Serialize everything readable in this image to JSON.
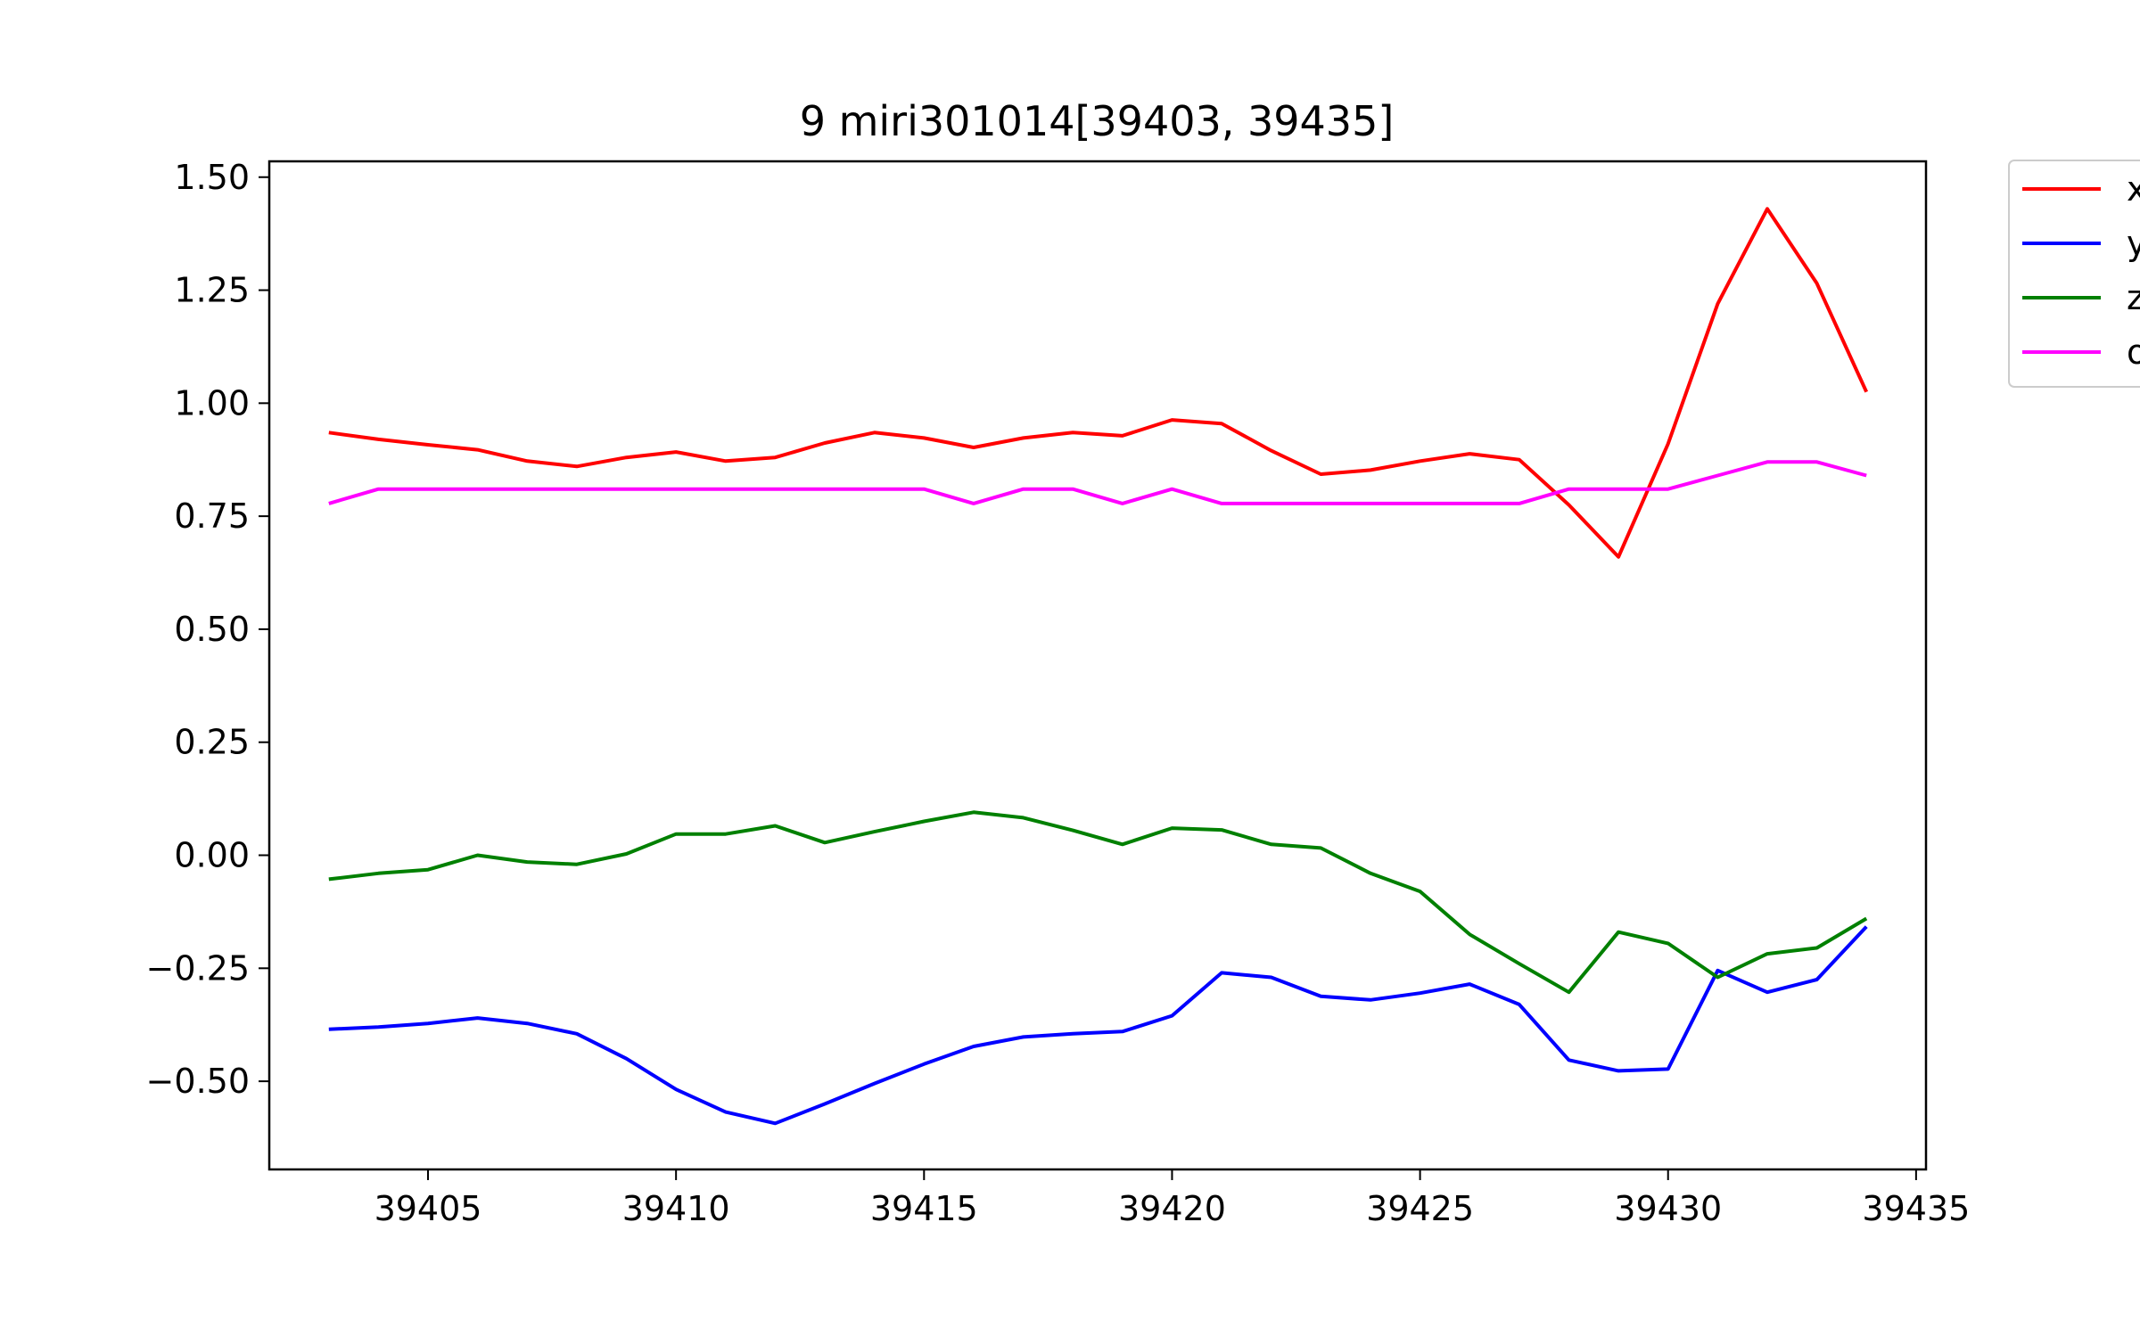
{
  "chart_data": {
    "type": "line",
    "title": "9 miri301014[39403, 39435]",
    "xlabel": "",
    "ylabel": "",
    "xlim": [
      39401.8,
      39435.2
    ],
    "ylim": [
      -0.695,
      1.535
    ],
    "x_ticks": [
      39405,
      39410,
      39415,
      39420,
      39425,
      39430,
      39435
    ],
    "x_tick_labels": [
      "39405",
      "39410",
      "39415",
      "39420",
      "39425",
      "39430",
      "39435"
    ],
    "y_ticks": [
      1.5,
      1.25,
      1.0,
      0.75,
      0.5,
      0.25,
      0.0,
      -0.25,
      -0.5
    ],
    "y_tick_labels": [
      "1.50",
      "1.25",
      "1.00",
      "0.75",
      "0.50",
      "0.25",
      "0.00",
      "−0.25",
      "−0.50"
    ],
    "grid": false,
    "legend_position": "outside-top-right",
    "x": [
      39403,
      39404,
      39405,
      39406,
      39407,
      39408,
      39409,
      39410,
      39411,
      39412,
      39413,
      39414,
      39415,
      39416,
      39417,
      39418,
      39419,
      39420,
      39421,
      39422,
      39423,
      39424,
      39425,
      39426,
      39427,
      39428,
      39429,
      39430,
      39431,
      39432,
      39433,
      39434
    ],
    "series": [
      {
        "name": "x",
        "color": "#ff0000",
        "values": [
          0.935,
          0.92,
          0.908,
          0.897,
          0.872,
          0.86,
          0.88,
          0.892,
          0.872,
          0.88,
          0.912,
          0.935,
          0.923,
          0.902,
          0.923,
          0.935,
          0.928,
          0.963,
          0.955,
          0.895,
          0.843,
          0.852,
          0.872,
          0.888,
          0.875,
          0.775,
          0.66,
          0.91,
          1.22,
          1.43,
          1.265,
          1.025
        ]
      },
      {
        "name": "y",
        "color": "#0000ff",
        "values": [
          -0.385,
          -0.38,
          -0.372,
          -0.36,
          -0.372,
          -0.395,
          -0.45,
          -0.518,
          -0.568,
          -0.593,
          -0.55,
          -0.505,
          -0.462,
          -0.423,
          -0.402,
          -0.395,
          -0.39,
          -0.355,
          -0.26,
          -0.27,
          -0.312,
          -0.32,
          -0.305,
          -0.285,
          -0.33,
          -0.453,
          -0.477,
          -0.473,
          -0.255,
          -0.303,
          -0.275,
          -0.158
        ]
      },
      {
        "name": "z",
        "color": "#008000",
        "values": [
          -0.053,
          -0.04,
          -0.032,
          0.0,
          -0.015,
          -0.02,
          0.003,
          0.047,
          0.047,
          0.065,
          0.028,
          0.052,
          0.075,
          0.095,
          0.083,
          0.055,
          0.024,
          0.06,
          0.056,
          0.024,
          0.016,
          -0.04,
          -0.08,
          -0.175,
          -0.24,
          -0.303,
          -0.17,
          -0.195,
          -0.27,
          -0.218,
          -0.205,
          -0.14
        ]
      },
      {
        "name": "o",
        "color": "#ff00ff",
        "values": [
          0.778,
          0.81,
          0.81,
          0.81,
          0.81,
          0.81,
          0.81,
          0.81,
          0.81,
          0.81,
          0.81,
          0.81,
          0.81,
          0.778,
          0.81,
          0.81,
          0.778,
          0.81,
          0.778,
          0.778,
          0.778,
          0.778,
          0.778,
          0.778,
          0.778,
          0.81,
          0.81,
          0.81,
          0.84,
          0.87,
          0.87,
          0.84
        ]
      }
    ]
  }
}
